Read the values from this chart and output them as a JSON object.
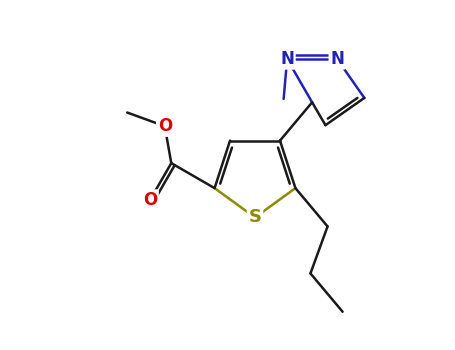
{
  "bg_color": "#ffffff",
  "bond_color": "#1a1a1a",
  "bond_width": 1.8,
  "S_color": "#8b8b00",
  "O_color": "#dd0000",
  "N_color": "#2222bb",
  "font_size": 12,
  "fig_width": 4.55,
  "fig_height": 3.5,
  "dpi": 100,
  "xlim": [
    0,
    9.1
  ],
  "ylim": [
    0,
    7.0
  ]
}
